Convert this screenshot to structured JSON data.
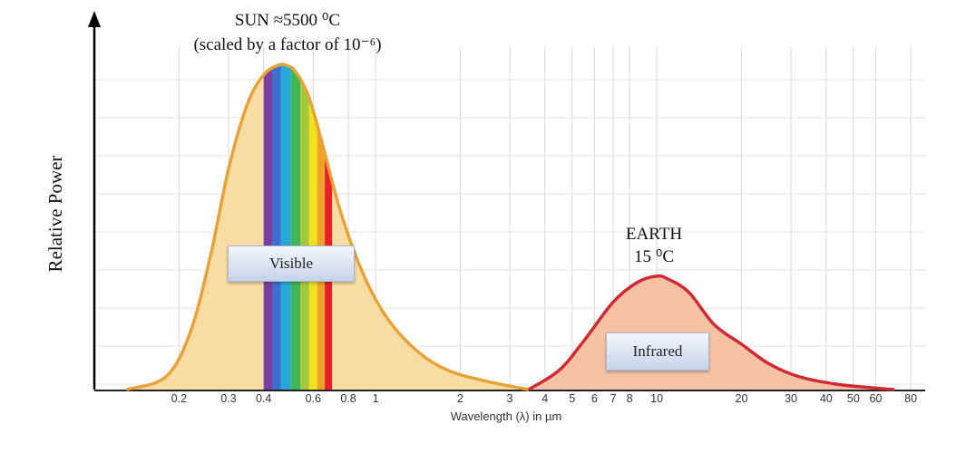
{
  "chart_data": {
    "type": "area",
    "x_scale": "log",
    "xlim": [
      0.1,
      90
    ],
    "xlabel": "Wavelength (λ) in µm",
    "ylabel": "Relative Power",
    "x_ticks": [
      0.2,
      0.3,
      0.4,
      0.6,
      0.8,
      1,
      2,
      3,
      4,
      5,
      6,
      7,
      8,
      10,
      20,
      30,
      40,
      50,
      60,
      80
    ],
    "x_tick_labels": [
      "0.2",
      "0.3",
      "0.4",
      "0.6",
      "0.8",
      "1",
      "2",
      "3",
      "4",
      "5",
      "6",
      "7",
      "8",
      "10",
      "20",
      "30",
      "40",
      "50",
      "60",
      "80"
    ],
    "grid": true,
    "series": [
      {
        "color": "#e8a23a",
        "fill": "#f9dca3",
        "x": [
          0.13,
          0.18,
          0.22,
          0.26,
          0.3,
          0.35,
          0.4,
          0.45,
          0.48,
          0.52,
          0.58,
          0.65,
          0.75,
          0.9,
          1.1,
          1.4,
          1.8,
          2.5,
          3.5
        ],
        "y": [
          0.0,
          0.04,
          0.18,
          0.42,
          0.68,
          0.88,
          0.97,
          1.0,
          1.0,
          0.98,
          0.9,
          0.75,
          0.55,
          0.36,
          0.22,
          0.12,
          0.06,
          0.025,
          0.0
        ]
      },
      {
        "color": "#d02a35",
        "fill": "#f6c2a6",
        "x": [
          3.5,
          4.5,
          5.5,
          7,
          8.5,
          10,
          11,
          13,
          16,
          20,
          25,
          32,
          45,
          70
        ],
        "y": [
          0.0,
          0.06,
          0.15,
          0.27,
          0.33,
          0.35,
          0.34,
          0.3,
          0.2,
          0.14,
          0.08,
          0.04,
          0.015,
          0.0
        ]
      }
    ],
    "visible_bands": [
      {
        "from": 0.4,
        "to": 0.43,
        "color": "#7b3fa0"
      },
      {
        "from": 0.43,
        "to": 0.46,
        "color": "#3d6fd1"
      },
      {
        "from": 0.46,
        "to": 0.5,
        "color": "#28a8d8"
      },
      {
        "from": 0.5,
        "to": 0.54,
        "color": "#3fb558"
      },
      {
        "from": 0.54,
        "to": 0.58,
        "color": "#a3c93a"
      },
      {
        "from": 0.58,
        "to": 0.62,
        "color": "#f2e21b"
      },
      {
        "from": 0.62,
        "to": 0.66,
        "color": "#f0a22a"
      },
      {
        "from": 0.66,
        "to": 0.7,
        "color": "#e82127"
      }
    ],
    "annotations": {
      "sun_line1": "SUN ≈5500 ⁰C",
      "sun_line2": "(scaled by a factor of 10⁻⁶)",
      "earth_line1": "EARTH",
      "earth_line2": "15 ⁰C",
      "visible_label": "Visible",
      "infrared_label": "Infrared"
    }
  }
}
